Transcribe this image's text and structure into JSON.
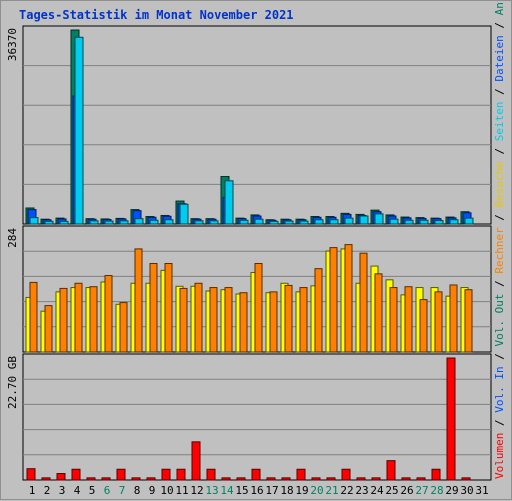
{
  "title": "Tages-Statistik im Monat November 2021",
  "chart_data": [
    {
      "type": "bar",
      "ymax_label": "36370",
      "ylim": [
        0,
        36370
      ],
      "categories": [
        "1",
        "2",
        "3",
        "4",
        "5",
        "6",
        "7",
        "8",
        "9",
        "10",
        "11",
        "12",
        "13",
        "14",
        "15",
        "16",
        "17",
        "18",
        "19",
        "20",
        "21",
        "22",
        "23",
        "24",
        "25",
        "26",
        "27",
        "28",
        "29",
        "30",
        "31"
      ],
      "weekend_days": [
        "6",
        "7",
        "13",
        "14",
        "20",
        "21",
        "27",
        "28"
      ],
      "series": [
        {
          "name": "Anfragen",
          "color": "#008060",
          "values": [
            3000,
            900,
            1100,
            36370,
            1000,
            950,
            1050,
            2700,
            1400,
            1600,
            4300,
            1000,
            1000,
            8900,
            1100,
            1700,
            800,
            900,
            900,
            1400,
            1400,
            2000,
            1800,
            2600,
            1700,
            1300,
            1200,
            1100,
            1300,
            2300,
            0
          ]
        },
        {
          "name": "Dateien",
          "color": "#0050ff",
          "values": [
            2700,
            800,
            950,
            24000,
            900,
            850,
            950,
            2500,
            1250,
            1450,
            3800,
            900,
            900,
            5000,
            1000,
            1500,
            700,
            800,
            800,
            1250,
            1250,
            1800,
            1600,
            2300,
            1500,
            1150,
            1050,
            1000,
            1150,
            2100,
            0
          ]
        },
        {
          "name": "Seiten",
          "color": "#00ccee",
          "values": [
            1200,
            500,
            500,
            35000,
            600,
            550,
            600,
            1000,
            700,
            800,
            3700,
            600,
            600,
            8100,
            700,
            900,
            500,
            550,
            550,
            800,
            800,
            1100,
            1500,
            1900,
            900,
            700,
            700,
            650,
            800,
            1100,
            0
          ]
        }
      ],
      "grid": true
    },
    {
      "type": "bar",
      "ymax_label": "284",
      "ylim": [
        0,
        284
      ],
      "series": [
        {
          "name": "Besuche",
          "color": "#ffff00",
          "values": [
            127,
            95,
            140,
            150,
            150,
            163,
            111,
            160,
            160,
            190,
            153,
            153,
            142,
            145,
            135,
            185,
            138,
            160,
            140,
            154,
            235,
            240,
            160,
            200,
            168,
            133,
            150,
            150,
            130,
            150,
            0
          ]
        },
        {
          "name": "Rechner",
          "color": "#ff8000",
          "values": [
            162,
            108,
            148,
            160,
            152,
            178,
            115,
            240,
            206,
            206,
            148,
            160,
            150,
            150,
            138,
            206,
            140,
            155,
            150,
            194,
            243,
            250,
            230,
            182,
            150,
            152,
            122,
            140,
            156,
            145,
            0
          ]
        }
      ],
      "grid": true
    },
    {
      "type": "bar",
      "ymax_label": "22.70 GB",
      "ylim": [
        0,
        22.7
      ],
      "series": [
        {
          "name": "Volumen",
          "color": "#ff0000",
          "values": [
            2.1,
            0.4,
            1.2,
            2.0,
            0.4,
            0.4,
            2.0,
            0.4,
            0.4,
            2.0,
            2.0,
            7.1,
            2.0,
            0.4,
            0.4,
            2.0,
            0.4,
            0.4,
            2.0,
            0.4,
            0.4,
            2.0,
            0.4,
            0.4,
            3.6,
            0.4,
            0.4,
            2.0,
            22.7,
            0.4,
            0
          ]
        }
      ],
      "grid": true
    }
  ],
  "right_legend": [
    {
      "text": "Volumen",
      "color": "#ff0000"
    },
    {
      "text": " / ",
      "color": "#000000"
    },
    {
      "text": "Vol. In",
      "color": "#0050ff"
    },
    {
      "text": " / ",
      "color": "#000000"
    },
    {
      "text": "Vol. Out",
      "color": "#008060"
    },
    {
      "text": " / ",
      "color": "#000000"
    },
    {
      "text": "Rechner",
      "color": "#ff8000"
    },
    {
      "text": " / ",
      "color": "#000000"
    },
    {
      "text": "Besuche",
      "color": "#e6c800"
    },
    {
      "text": " / ",
      "color": "#000000"
    },
    {
      "text": "Seiten",
      "color": "#00ccee"
    },
    {
      "text": " / ",
      "color": "#000000"
    },
    {
      "text": "Dateien",
      "color": "#0050ff"
    },
    {
      "text": " / ",
      "color": "#000000"
    },
    {
      "text": "Anfragen",
      "color": "#008060"
    }
  ]
}
